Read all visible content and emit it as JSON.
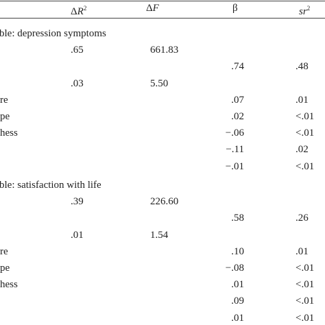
{
  "header": {
    "delta_r2_prefix": "Δ",
    "delta_r2_var": "R",
    "delta_r2_sup": "2",
    "delta_f_prefix": "Δ",
    "delta_f_var": "F",
    "beta": "β",
    "sr2_var": "sr",
    "sr2_sup": "2"
  },
  "sections": [
    {
      "title": "ble: depression symptoms",
      "rows": [
        {
          "label": "",
          "dr2": ".65",
          "df": "661.83",
          "beta": "",
          "sr2": ""
        },
        {
          "label": "",
          "dr2": "",
          "df": "",
          "beta": ".74",
          "sr2": ".48"
        },
        {
          "label": "",
          "dr2": ".03",
          "df": "5.50",
          "beta": "",
          "sr2": ""
        },
        {
          "label": "re",
          "dr2": "",
          "df": "",
          "beta": ".07",
          "sr2": ".01"
        },
        {
          "label": "pe",
          "dr2": "",
          "df": "",
          "beta": ".02",
          "sr2": "<.01"
        },
        {
          "label": "hess",
          "dr2": "",
          "df": "",
          "beta": "−.06",
          "sr2": "<.01"
        },
        {
          "label": "",
          "dr2": "",
          "df": "",
          "beta": "−.11",
          "sr2": ".02"
        },
        {
          "label": "",
          "dr2": "",
          "df": "",
          "beta": "−.01",
          "sr2": "<.01"
        }
      ]
    },
    {
      "title": "ble: satisfaction with life",
      "rows": [
        {
          "label": "",
          "dr2": ".39",
          "df": "226.60",
          "beta": "",
          "sr2": ""
        },
        {
          "label": "",
          "dr2": "",
          "df": "",
          "beta": ".58",
          "sr2": ".26"
        },
        {
          "label": "",
          "dr2": ".01",
          "df": "1.54",
          "beta": "",
          "sr2": ""
        },
        {
          "label": "re",
          "dr2": "",
          "df": "",
          "beta": ".10",
          "sr2": ".01"
        },
        {
          "label": "pe",
          "dr2": "",
          "df": "",
          "beta": "−.08",
          "sr2": "<.01"
        },
        {
          "label": "hess",
          "dr2": "",
          "df": "",
          "beta": ".01",
          "sr2": "<.01"
        },
        {
          "label": "",
          "dr2": "",
          "df": "",
          "beta": ".09",
          "sr2": "<.01"
        },
        {
          "label": "",
          "dr2": "",
          "df": "",
          "beta": ".01",
          "sr2": "<.01"
        }
      ]
    }
  ]
}
